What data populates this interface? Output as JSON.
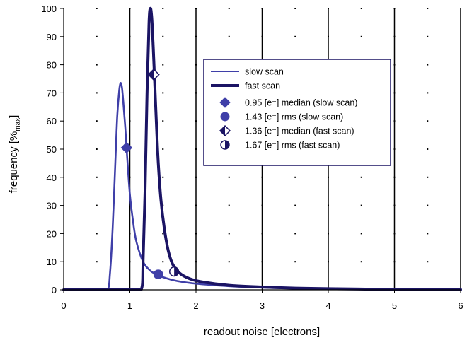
{
  "chart_data": {
    "type": "line",
    "xlabel": "readout noise [electrons]",
    "ylabel": {
      "main": "frequency [%",
      "sub": "max",
      "close": "]"
    },
    "xlim": [
      0,
      6
    ],
    "ylim": [
      0,
      100
    ],
    "xticks": [
      "0",
      "1",
      "2",
      "3",
      "4",
      "5",
      "6"
    ],
    "yticks": [
      "0",
      "10",
      "20",
      "30",
      "40",
      "50",
      "60",
      "70",
      "80",
      "90",
      "100"
    ],
    "grid": {
      "vertical_major": "solid",
      "minor_dots": true
    },
    "legend_position": "top-right",
    "series": [
      {
        "name": "slow scan",
        "color": "#3f3fa8",
        "line": "thin",
        "x": [
          0,
          0.5,
          0.66,
          0.7,
          0.74,
          0.78,
          0.81,
          0.84,
          0.86,
          0.88,
          0.9,
          0.93,
          0.96,
          1.0,
          1.05,
          1.1,
          1.2,
          1.3,
          1.4,
          1.5,
          1.7,
          2.0,
          2.5,
          3.0,
          3.5,
          4.0,
          5.0,
          6.0
        ],
        "y": [
          0,
          0,
          0,
          6,
          22,
          45,
          62,
          71,
          73.5,
          72,
          67,
          58,
          47,
          34,
          24,
          17,
          10,
          7,
          5.5,
          4.5,
          3.2,
          2.2,
          1.3,
          0.8,
          0.5,
          0.3,
          0.1,
          0.05
        ]
      },
      {
        "name": "fast scan",
        "color": "#1b1464",
        "line": "thick",
        "x": [
          0,
          1.0,
          1.17,
          1.2,
          1.23,
          1.26,
          1.29,
          1.31,
          1.33,
          1.35,
          1.37,
          1.4,
          1.43,
          1.47,
          1.52,
          1.58,
          1.65,
          1.75,
          1.9,
          2.1,
          2.5,
          3.0,
          3.5,
          4.0,
          5.0,
          6.0
        ],
        "y": [
          0,
          0,
          0,
          10,
          35,
          70,
          95,
          100,
          97,
          88,
          77,
          60,
          45,
          32,
          22,
          14,
          9,
          6,
          4,
          2.8,
          1.6,
          1.0,
          0.6,
          0.4,
          0.15,
          0.05
        ]
      }
    ],
    "markers": [
      {
        "label": "0.95 [e⁻] median (slow scan)",
        "shape": "diamond",
        "style": "filled",
        "x": 0.95,
        "y": 50.5,
        "color": "#3f3fa8"
      },
      {
        "label": "1.43 [e⁻] rms (slow scan)",
        "shape": "circle",
        "style": "filled",
        "x": 1.43,
        "y": 5.5,
        "color": "#3f3fa8"
      },
      {
        "label": "1.36 [e⁻] median (fast scan)",
        "shape": "diamond",
        "style": "half",
        "x": 1.36,
        "y": 76.5,
        "color": "#1b1464"
      },
      {
        "label": "1.67 [e⁻] rms (fast scan)",
        "shape": "circle",
        "style": "half",
        "x": 1.67,
        "y": 6.5,
        "color": "#1b1464"
      }
    ]
  }
}
